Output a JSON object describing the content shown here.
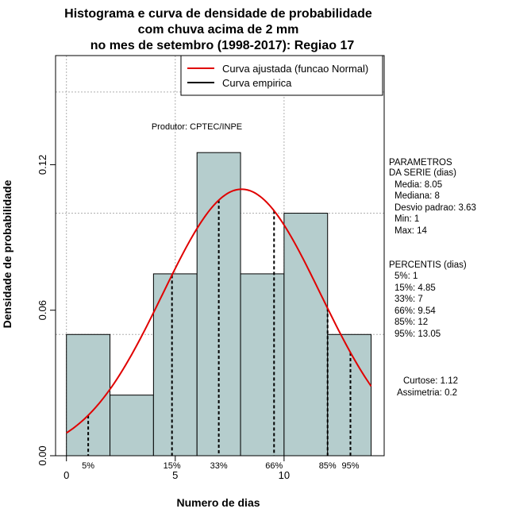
{
  "chart_data": {
    "type": "bar",
    "title_lines": [
      "Histograma e curva de densidade de probabilidade",
      "com chuva acima de 2 mm",
      "no mes de setembro (1998-2017): Regiao 17"
    ],
    "xlabel": "Numero de dias",
    "ylabel": "Densidade de probabilidade",
    "xlim": [
      -0.5,
      14.6
    ],
    "ylim": [
      0,
      0.165
    ],
    "x_ticks": [
      0,
      5,
      10
    ],
    "y_ticks": [
      0.0,
      0.06,
      0.12
    ],
    "y_tick_labels": [
      "0.00",
      "0.06",
      "0.12"
    ],
    "grid": true,
    "bins": [
      {
        "x0": 0,
        "x1": 2,
        "density": 0.05
      },
      {
        "x0": 2,
        "x1": 4,
        "density": 0.025
      },
      {
        "x0": 4,
        "x1": 6,
        "density": 0.075
      },
      {
        "x0": 6,
        "x1": 8,
        "density": 0.125
      },
      {
        "x0": 8,
        "x1": 10,
        "density": 0.075
      },
      {
        "x0": 10,
        "x1": 12,
        "density": 0.1
      },
      {
        "x0": 12,
        "x1": 14,
        "density": 0.05
      }
    ],
    "normal_curve": {
      "mean": 8.05,
      "sd": 3.63,
      "x_from": 0,
      "x_to": 14
    },
    "percentile_lines": [
      {
        "label": "5%",
        "x": 1
      },
      {
        "label": "15%",
        "x": 4.85
      },
      {
        "label": "33%",
        "x": 7
      },
      {
        "label": "66%",
        "x": 9.54
      },
      {
        "label": "85%",
        "x": 12
      },
      {
        "label": "95%",
        "x": 13.05
      }
    ],
    "legend": {
      "position": "top-right",
      "entries": [
        {
          "label": "Curva ajustada (funcao Normal)",
          "color": "#e00000"
        },
        {
          "label": "Curva empirica",
          "color": "#000000"
        }
      ]
    },
    "annotation": "Produtor: CPTEC/INPE",
    "colors": {
      "bar_fill": "#b5cdcd",
      "curve": "#e00000",
      "grid": "#b0b0b0"
    }
  },
  "stats": {
    "parametros_title_lines": [
      "PARAMETROS",
      "DA SERIE (dias)"
    ],
    "parametros": [
      "Media: 8.05",
      "Mediana: 8",
      "Desvio padrao: 3.63",
      "Min: 1",
      "Max: 14"
    ],
    "percentis_title": "PERCENTIS (dias)",
    "percentis": [
      "5%: 1",
      "15%: 4.85",
      "33%: 7",
      "66%: 9.54",
      "85%: 12",
      "95%: 13.05"
    ],
    "curtose": "Curtose: 1.12",
    "assimetria": "Assimetria: 0.2"
  }
}
